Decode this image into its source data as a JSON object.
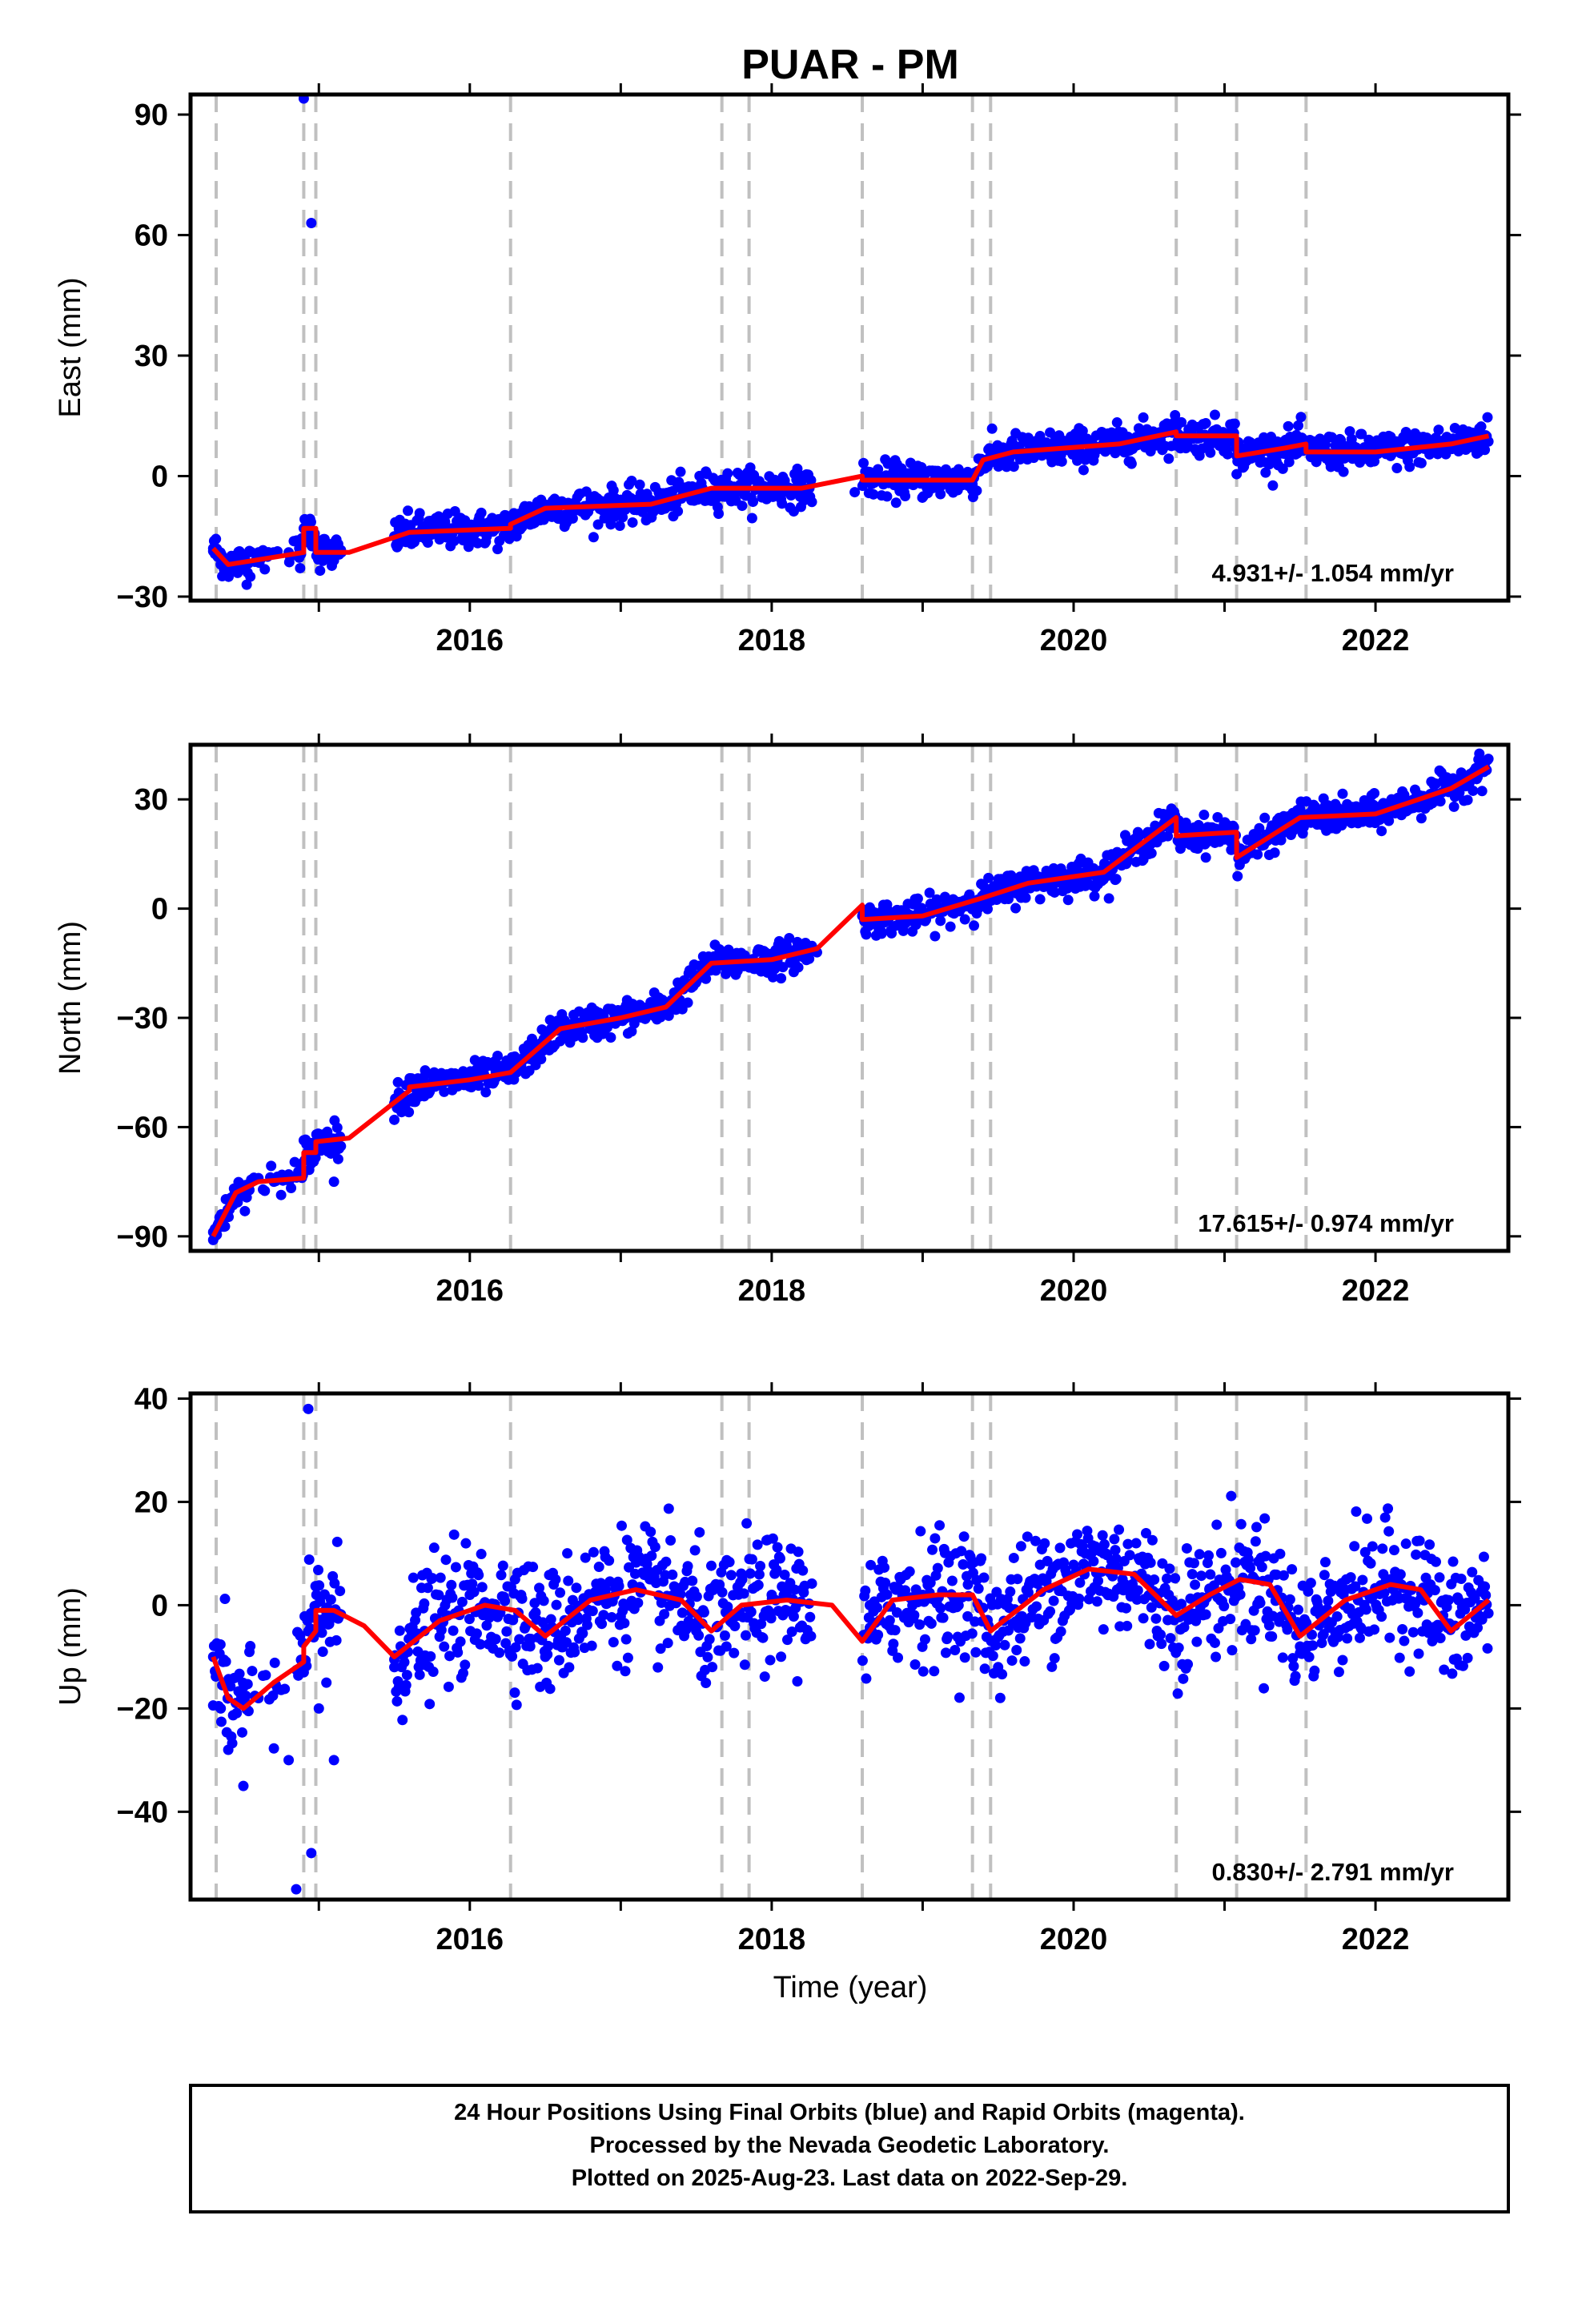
{
  "title": "PUAR - PM",
  "xlabel": "Time (year)",
  "footer": {
    "line1": "24 Hour Positions Using Final Orbits (blue) and Rapid Orbits (magenta).",
    "line2": "Processed by the Nevada Geodetic Laboratory.",
    "line3": "Plotted on 2025-Aug-23. Last data on 2022-Sep-29."
  },
  "colors": {
    "data": "#0000ff",
    "model": "#ff0000",
    "breaks": "#c0c0c0",
    "frame": "#000000"
  },
  "chart_data": [
    {
      "type": "scatter",
      "ylabel": "East (mm)",
      "rate_label": "4.931+/- 1.054 mm/yr",
      "xlim": [
        2014.15,
        2022.88
      ],
      "ylim": [
        -31,
        95
      ],
      "xticks": [
        2016,
        2018,
        2020,
        2022
      ],
      "yticks": [
        -30,
        0,
        30,
        60,
        90
      ],
      "ytick_labels": [
        "−30",
        "0",
        "30",
        "60",
        "90"
      ],
      "breaks": [
        2014.32,
        2014.9,
        2014.98,
        2016.27,
        2017.67,
        2017.85,
        2018.6,
        2019.33,
        2019.45,
        2020.68,
        2021.08,
        2021.54
      ],
      "series": [
        {
          "kind": "points",
          "x": [
            2014.3,
            2014.35,
            2014.4,
            2014.5,
            2014.6,
            2014.7,
            2014.8,
            2014.87,
            2014.9,
            2014.95,
            2015.0,
            2015.05,
            2015.1,
            2015.15,
            2015.55,
            2015.7,
            2016.0,
            2016.27,
            2016.5,
            2016.9,
            2017.2,
            2017.5,
            2017.75,
            2018.0,
            2018.25,
            2018.55,
            2018.65,
            2018.9,
            2019.2,
            2019.33,
            2019.6,
            2019.9,
            2020.2,
            2020.5,
            2020.68,
            2020.9,
            2021.08,
            2021.3,
            2021.54,
            2021.8,
            2022.1,
            2022.4,
            2022.7
          ],
          "y": [
            -18,
            -22,
            -21,
            -20,
            -19,
            -19,
            -19,
            -18,
            94,
            63,
            -20,
            -18,
            -21,
            -19,
            -16,
            -14,
            -13,
            -13,
            -8,
            -7,
            -6,
            -3,
            -4,
            -3,
            -3,
            -4,
            -1,
            -2,
            -1,
            -2,
            6,
            7,
            8,
            10,
            12,
            10,
            5,
            6,
            8,
            5,
            5,
            7,
            10
          ]
        },
        {
          "kind": "model",
          "x": [
            2014.3,
            2014.4,
            2014.9,
            2014.9,
            2014.98,
            2014.98,
            2015.2,
            2015.6,
            2016.27,
            2016.27,
            2016.5,
            2017.2,
            2017.6,
            2018.2,
            2018.6,
            2018.6,
            2019.33,
            2019.4,
            2019.6,
            2020.3,
            2020.68,
            2020.68,
            2021.08,
            2021.08,
            2021.4,
            2021.54,
            2021.54,
            2022.0,
            2022.5,
            2022.75
          ],
          "y": [
            -18,
            -22,
            -19,
            -13,
            -13,
            -19,
            -19,
            -14,
            -13,
            -12,
            -8,
            -7,
            -3,
            -3,
            0,
            -1,
            -1,
            4,
            6,
            8,
            11,
            10,
            10,
            5,
            7,
            8,
            6,
            6,
            8,
            10
          ]
        }
      ]
    },
    {
      "type": "scatter",
      "ylabel": "North (mm)",
      "rate_label": "17.615+/- 0.974 mm/yr",
      "xlim": [
        2014.15,
        2022.88
      ],
      "ylim": [
        -94,
        45
      ],
      "xticks": [
        2016,
        2018,
        2020,
        2022
      ],
      "yticks": [
        -90,
        -60,
        -30,
        0,
        30
      ],
      "ytick_labels": [
        "−90",
        "−60",
        "−30",
        "0",
        "30"
      ],
      "breaks": [
        2014.32,
        2014.9,
        2014.98,
        2016.27,
        2017.67,
        2017.85,
        2018.6,
        2019.33,
        2019.45,
        2020.68,
        2021.08,
        2021.54
      ],
      "series": [
        {
          "kind": "points",
          "x": [
            2014.3,
            2014.35,
            2014.45,
            2014.6,
            2014.8,
            2014.95,
            2015.1,
            2015.5,
            2015.7,
            2016.0,
            2016.27,
            2016.6,
            2017.0,
            2017.4,
            2017.6,
            2018.0,
            2018.3,
            2018.6,
            2019.0,
            2019.3,
            2019.6,
            2020.0,
            2020.5,
            2020.68,
            2021.0,
            2021.1,
            2021.5,
            2022.0,
            2022.4,
            2022.7
          ],
          "y": [
            -91,
            -85,
            -77,
            -74,
            -73,
            -70,
            -75,
            -58,
            -48,
            -46,
            -44,
            -33,
            -30,
            -26,
            -16,
            -14,
            -12,
            -2,
            -3,
            2,
            6,
            8,
            15,
            24,
            19,
            12,
            24,
            24,
            30,
            38
          ]
        },
        {
          "kind": "model",
          "x": [
            2014.3,
            2014.45,
            2014.6,
            2014.9,
            2014.9,
            2014.98,
            2014.98,
            2015.2,
            2015.6,
            2015.6,
            2016.0,
            2016.27,
            2016.6,
            2017.0,
            2017.3,
            2017.6,
            2018.0,
            2018.3,
            2018.6,
            2018.6,
            2019.0,
            2019.4,
            2019.7,
            2020.2,
            2020.68,
            2020.68,
            2021.08,
            2021.08,
            2021.5,
            2022.0,
            2022.5,
            2022.75
          ],
          "y": [
            -90,
            -78,
            -75,
            -74,
            -67,
            -67,
            -64,
            -63,
            -50,
            -49,
            -47,
            -45,
            -33,
            -30,
            -27,
            -15,
            -14,
            -11,
            1,
            -3,
            -2,
            3,
            7,
            10,
            25,
            20,
            21,
            14,
            25,
            26,
            33,
            39
          ]
        }
      ]
    },
    {
      "type": "scatter",
      "ylabel": "Up (mm)",
      "rate_label": "0.830+/- 2.791 mm/yr",
      "xlim": [
        2014.15,
        2022.88
      ],
      "ylim": [
        -57,
        41
      ],
      "xticks": [
        2016,
        2018,
        2020,
        2022
      ],
      "yticks": [
        -40,
        -20,
        0,
        20,
        40
      ],
      "ytick_labels": [
        "−40",
        "−20",
        "0",
        "20",
        "40"
      ],
      "breaks": [
        2014.32,
        2014.9,
        2014.98,
        2016.27,
        2017.67,
        2017.85,
        2018.6,
        2019.33,
        2019.45,
        2020.68,
        2021.08,
        2021.54
      ],
      "series": [
        {
          "kind": "points",
          "x": [
            2014.3,
            2014.35,
            2014.4,
            2014.5,
            2014.6,
            2014.8,
            2014.85,
            2014.93,
            2014.95,
            2015.0,
            2015.05,
            2015.1,
            2015.5,
            2015.7,
            2016.0,
            2016.3,
            2016.5,
            2016.9,
            2017.2,
            2017.5,
            2017.7,
            2018.0,
            2018.2,
            2018.65,
            2019.0,
            2019.3,
            2019.5,
            2019.9,
            2020.2,
            2020.5,
            2020.9,
            2021.2,
            2021.5,
            2021.8,
            2022.1,
            2022.4,
            2022.7
          ],
          "y": [
            -10,
            -20,
            -28,
            -35,
            -18,
            -30,
            -55,
            38,
            -48,
            -20,
            -15,
            -30,
            -12,
            -5,
            2,
            5,
            -10,
            3,
            5,
            -5,
            -8,
            2,
            3,
            0,
            2,
            4,
            -12,
            8,
            10,
            4,
            3,
            5,
            -8,
            3,
            5,
            -5,
            0
          ]
        },
        {
          "kind": "model",
          "x": [
            2014.3,
            2014.4,
            2014.5,
            2014.7,
            2014.9,
            2014.9,
            2014.98,
            2014.98,
            2015.1,
            2015.3,
            2015.5,
            2015.8,
            2016.1,
            2016.3,
            2016.5,
            2016.8,
            2017.1,
            2017.4,
            2017.6,
            2017.8,
            2018.1,
            2018.4,
            2018.6,
            2018.8,
            2019.1,
            2019.33,
            2019.45,
            2019.8,
            2020.1,
            2020.4,
            2020.68,
            2020.9,
            2021.1,
            2021.3,
            2021.5,
            2021.8,
            2022.1,
            2022.3,
            2022.5,
            2022.75
          ],
          "y": [
            -10,
            -18,
            -20,
            -15,
            -11,
            -8,
            -5,
            -1,
            -1,
            -4,
            -10,
            -3,
            0,
            -1,
            -6,
            1,
            3,
            1,
            -5,
            0,
            1,
            0,
            -7,
            1,
            2,
            2,
            -5,
            3,
            7,
            6,
            -2,
            2,
            5,
            4,
            -6,
            1,
            4,
            3,
            -5,
            1
          ]
        }
      ]
    }
  ]
}
